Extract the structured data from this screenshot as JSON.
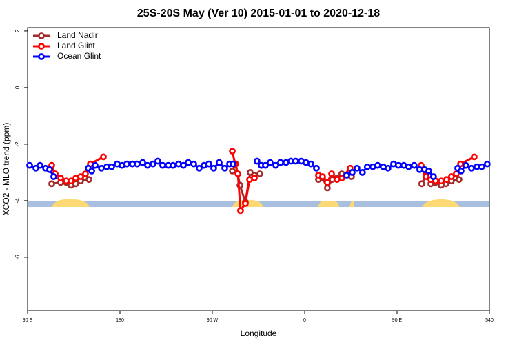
{
  "chart_data": {
    "type": "line",
    "title": "25S-20S May (Ver 10)   2015-01-01 to 2020-12-18",
    "x_label": "Longitude",
    "y_label": "XCO2 - MLO trend (ppm)",
    "xlim": [
      90,
      540
    ],
    "ylim": [
      -7.88,
      2.12
    ],
    "xticks": [
      {
        "value": 90,
        "label": "90 E"
      },
      180,
      {
        "value": 270,
        "label": "90 W"
      },
      {
        "value": 360,
        "label": "0"
      },
      {
        "value": 450,
        "label": "90 E"
      },
      540
    ],
    "yticks": [
      2,
      0,
      -2,
      -4,
      -6
    ],
    "legend": "top-left",
    "series": [
      {
        "name": "Land Nadir",
        "color": "#a52a2a",
        "x": [
          113.5,
          122.2,
          127.6,
          132.3,
          137.0,
          141.7,
          146.4,
          149.8,
          220,
          289.5,
          292.8,
          296.9,
          302.2,
          306.9,
          311.0,
          316.3,
          345,
          373.4,
          377.4,
          382.1,
          386.8,
          391.5,
          396.2,
          405.6,
          440,
          474.1,
          478.2,
          482.9,
          487.6,
          493.0,
          497.7,
          503.0,
          510.4
        ],
        "values": [
          -3.4,
          -3.35,
          -3.35,
          -3.45,
          -3.4,
          -3.3,
          -3.2,
          -3.25,
          null,
          -2.95,
          -2.7,
          -3.45,
          -4.05,
          -3.0,
          -3.1,
          -3.05,
          null,
          -3.25,
          -3.2,
          -3.55,
          -3.25,
          -3.2,
          -3.05,
          -3.15,
          null,
          -3.4,
          -3.1,
          -3.4,
          -3.35,
          -3.45,
          -3.4,
          -3.3,
          -3.25
        ]
      },
      {
        "name": "Land Glint",
        "color": "#ff0000",
        "x": [
          113.5,
          116.9,
          122.2,
          127.6,
          132.3,
          137.0,
          141.7,
          146.4,
          151.1,
          163.9,
          220,
          289.5,
          292.2,
          294.9,
          297.5,
          302.2,
          306.3,
          311.0,
          342,
          373.4,
          377.4,
          382.1,
          386.2,
          391.5,
          396.2,
          404.3,
          440,
          473.5,
          478.2,
          482.9,
          487.6,
          493.0,
          498.3,
          503.0,
          507.7,
          511.8,
          525.2
        ],
        "values": [
          -2.75,
          -3.05,
          -3.2,
          -3.3,
          -3.3,
          -3.2,
          -3.15,
          -3.05,
          -2.7,
          -2.45,
          null,
          -2.25,
          -2.7,
          -3.05,
          -4.35,
          -4.1,
          -3.25,
          -3.2,
          null,
          -3.1,
          -3.15,
          -3.35,
          -3.05,
          -3.25,
          -3.2,
          -2.85,
          null,
          -2.75,
          -3.15,
          -3.25,
          -3.3,
          -3.3,
          -3.25,
          -3.15,
          -3.05,
          -2.7,
          -2.45
        ]
      },
      {
        "name": "Ocean Glint",
        "color": "#0000ff",
        "x": [
          92.0,
          98.1,
          102.1,
          107.5,
          111.5,
          115.5,
          130,
          149.1,
          152.5,
          155.8,
          161.9,
          167.2,
          171.9,
          177.3,
          182.0,
          186.7,
          192.1,
          196.8,
          202.2,
          206.9,
          212.2,
          216.9,
          221.6,
          227.0,
          231.7,
          237.1,
          241.8,
          246.5,
          251.9,
          257.2,
          261.9,
          266.6,
          271.3,
          276.7,
          282.1,
          286.8,
          290.1,
          300,
          313.6,
          317.7,
          321.7,
          326.4,
          331.8,
          336.5,
          341.8,
          346.5,
          351.2,
          356.6,
          361.3,
          366.0,
          371.4,
          385,
          400.9,
          406.3,
          411.0,
          416.3,
          421.0,
          426.4,
          431.1,
          436.5,
          441.2,
          446.6,
          451.2,
          456.6,
          461.3,
          466.7,
          472.1,
          476.8,
          480.8,
          485.5,
          497,
          509.1,
          512.4,
          517.1,
          522.5,
          527.9,
          532.6,
          537.9
        ],
        "values": [
          -2.75,
          -2.85,
          -2.75,
          -2.85,
          -2.9,
          -3.15,
          null,
          -2.85,
          -2.95,
          -2.75,
          -2.85,
          -2.8,
          -2.8,
          -2.7,
          -2.75,
          -2.7,
          -2.7,
          -2.7,
          -2.65,
          -2.75,
          -2.7,
          -2.6,
          -2.75,
          -2.75,
          -2.75,
          -2.7,
          -2.75,
          -2.65,
          -2.7,
          -2.85,
          -2.75,
          -2.7,
          -2.85,
          -2.65,
          -2.85,
          -2.7,
          -2.7,
          null,
          -2.6,
          -2.75,
          -2.75,
          -2.65,
          -2.75,
          -2.65,
          -2.65,
          -2.6,
          -2.6,
          -2.6,
          -2.65,
          -2.7,
          -2.85,
          null,
          -3.1,
          -3.0,
          -2.85,
          -3.0,
          -2.8,
          -2.8,
          -2.75,
          -2.8,
          -2.85,
          -2.7,
          -2.75,
          -2.75,
          -2.8,
          -2.75,
          -2.9,
          -2.9,
          -2.95,
          -3.15,
          null,
          -2.85,
          -2.95,
          -2.75,
          -2.85,
          -2.8,
          -2.8,
          -2.7
        ]
      }
    ]
  }
}
